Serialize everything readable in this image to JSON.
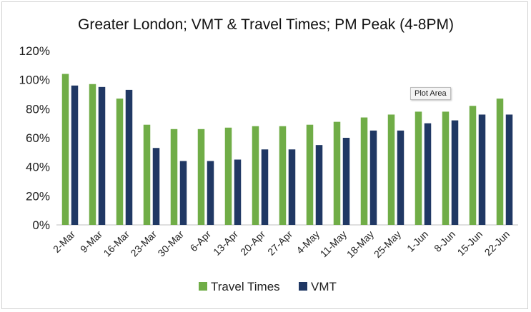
{
  "chart_data": {
    "type": "bar",
    "title": "Greater London; VMT & Travel Times; PM Peak (4-8PM)",
    "categories": [
      "2-Mar",
      "9-Mar",
      "16-Mar",
      "23-Mar",
      "30-Mar",
      "6-Apr",
      "13-Apr",
      "20-Apr",
      "27-Apr",
      "4-May",
      "11-May",
      "18-May",
      "25-May",
      "1-Jun",
      "8-Jun",
      "15-Jun",
      "22-Jun"
    ],
    "series": [
      {
        "name": "Travel Times",
        "color": "#70ad47",
        "values": [
          104,
          97,
          87,
          69,
          66,
          66,
          67,
          68,
          68,
          69,
          71,
          74,
          76,
          78,
          78,
          82,
          87
        ]
      },
      {
        "name": "VMT",
        "color": "#203864",
        "values": [
          96,
          95,
          93,
          53,
          44,
          44,
          45,
          52,
          52,
          55,
          60,
          65,
          65,
          70,
          72,
          76,
          76
        ]
      }
    ],
    "ylim": [
      0,
      120
    ],
    "yticks": [
      "0%",
      "20%",
      "40%",
      "60%",
      "80%",
      "100%",
      "120%"
    ],
    "grid": false,
    "legend": "bottom"
  },
  "tooltip": {
    "text": "Plot Area"
  }
}
